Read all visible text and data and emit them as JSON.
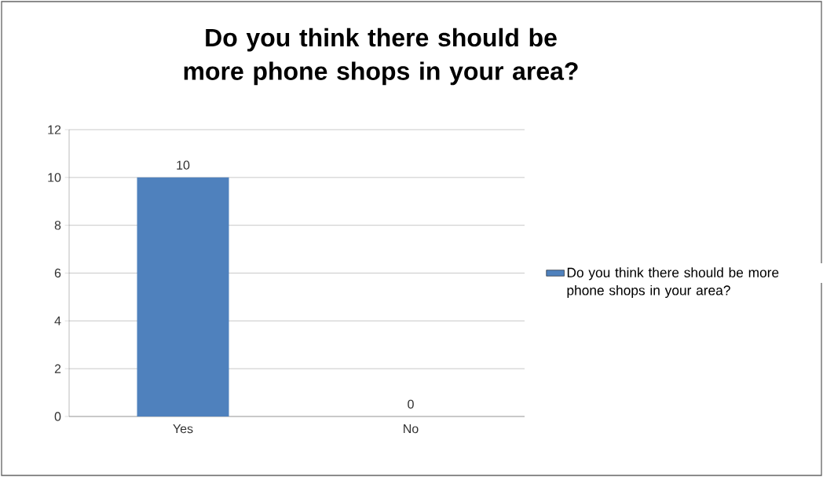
{
  "chart_data": {
    "type": "bar",
    "title": "Do you think there should be more phone shops in your area?",
    "categories": [
      "Yes",
      "No"
    ],
    "series": [
      {
        "name": "Do you think there should be more phone shops in your area?",
        "color": "#4f81bd",
        "values": [
          10,
          0
        ]
      }
    ],
    "ylim": [
      0,
      12
    ],
    "yticks": [
      0,
      2,
      4,
      6,
      8,
      10,
      12
    ],
    "grid": "y",
    "legend": "right",
    "data_labels": true
  }
}
